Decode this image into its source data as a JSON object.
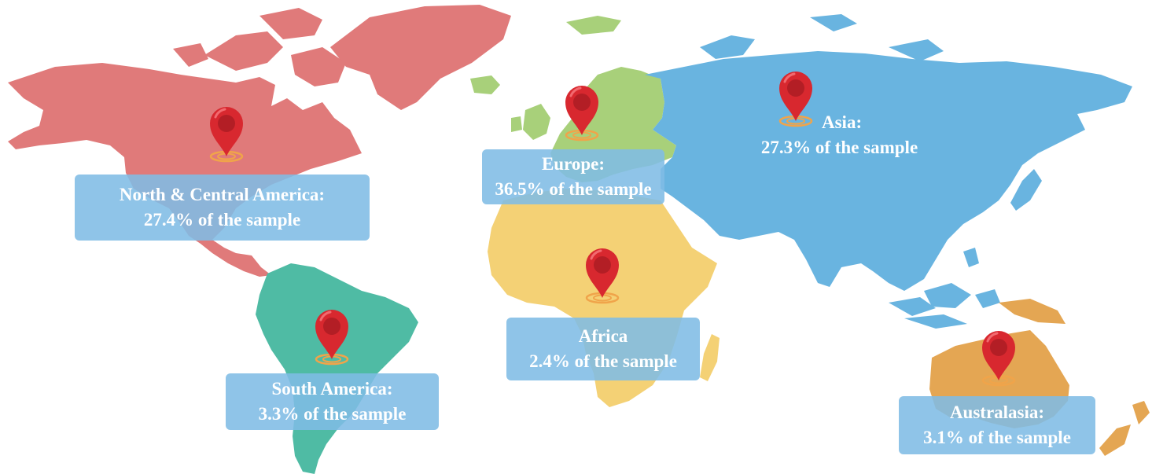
{
  "colors": {
    "north_central_america": "#e07a7a",
    "south_america": "#4fbba4",
    "europe": "#a8d07a",
    "africa": "#f4d175",
    "asia": "#69b4e0",
    "australasia": "#e4a653",
    "label_box": "#7fbce5",
    "pin": "#d8282f",
    "pin_ring": "#f0a44a"
  },
  "icons": {
    "location_pin": "map-pin-icon"
  },
  "regions": [
    {
      "id": "north-central-america",
      "name": "North & Central America:",
      "share": "27.4% of the sample",
      "value_percent": 27.4
    },
    {
      "id": "europe",
      "name": "Europe:",
      "share": "36.5% of the sample",
      "value_percent": 36.5
    },
    {
      "id": "asia",
      "name": "Asia:",
      "share": "27.3% of the sample",
      "value_percent": 27.3
    },
    {
      "id": "africa",
      "name": "Africa",
      "share": "2.4% of the sample",
      "value_percent": 2.4
    },
    {
      "id": "south-america",
      "name": "South America:",
      "share": "3.3% of the sample",
      "value_percent": 3.3
    },
    {
      "id": "australasia",
      "name": "Australasia:",
      "share": "3.1% of the sample",
      "value_percent": 3.1
    }
  ]
}
